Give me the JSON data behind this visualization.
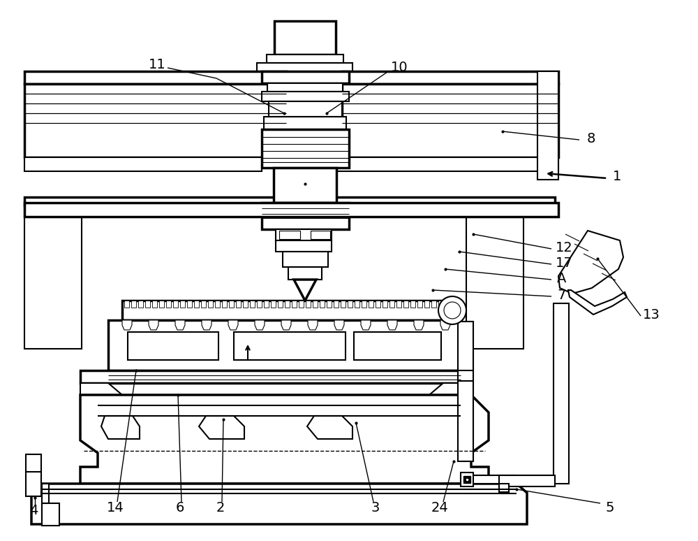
{
  "bg": "#ffffff",
  "lc": "#000000",
  "lw": 1.5,
  "tlw": 2.5,
  "fig_w": 10.0,
  "fig_h": 7.74
}
